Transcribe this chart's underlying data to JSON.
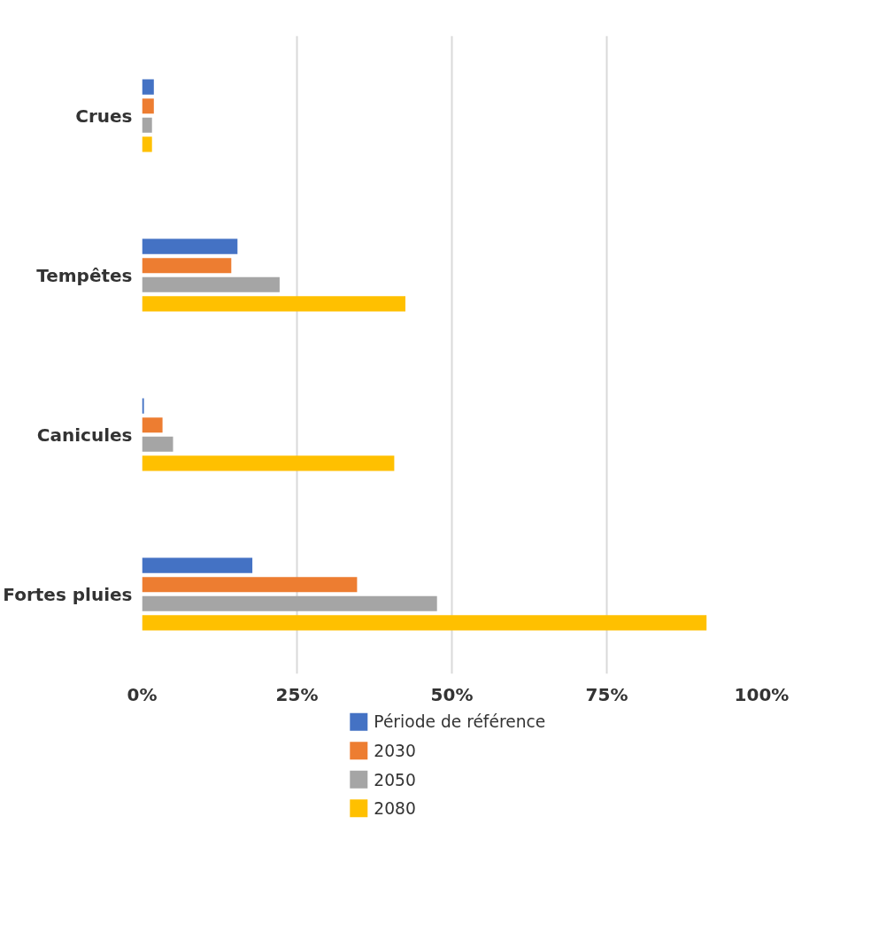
{
  "chart_data": {
    "type": "bar",
    "orientation": "horizontal",
    "categories": [
      "Crues",
      "Tempêtes",
      "Canicules",
      "Fortes pluies"
    ],
    "series": [
      {
        "name": "Période de référence",
        "color": "#4472c4",
        "values": [
          1.9,
          15.4,
          0.3,
          17.8
        ]
      },
      {
        "name": "2030",
        "color": "#ed7d31",
        "values": [
          1.9,
          14.4,
          3.3,
          34.7
        ]
      },
      {
        "name": "2050",
        "color": "#a5a5a5",
        "values": [
          1.6,
          22.2,
          5.0,
          47.6
        ]
      },
      {
        "name": "2080",
        "color": "#ffc000",
        "values": [
          1.6,
          42.5,
          40.7,
          91.1
        ]
      }
    ],
    "xlim": [
      0,
      100
    ],
    "xticks": [
      {
        "value": 0,
        "label": "0%"
      },
      {
        "value": 25,
        "label": "25%"
      },
      {
        "value": 50,
        "label": "50%"
      },
      {
        "value": 75,
        "label": "75%"
      },
      {
        "value": 100,
        "label": "100%"
      }
    ],
    "grid": "x",
    "legend": "bottom"
  }
}
